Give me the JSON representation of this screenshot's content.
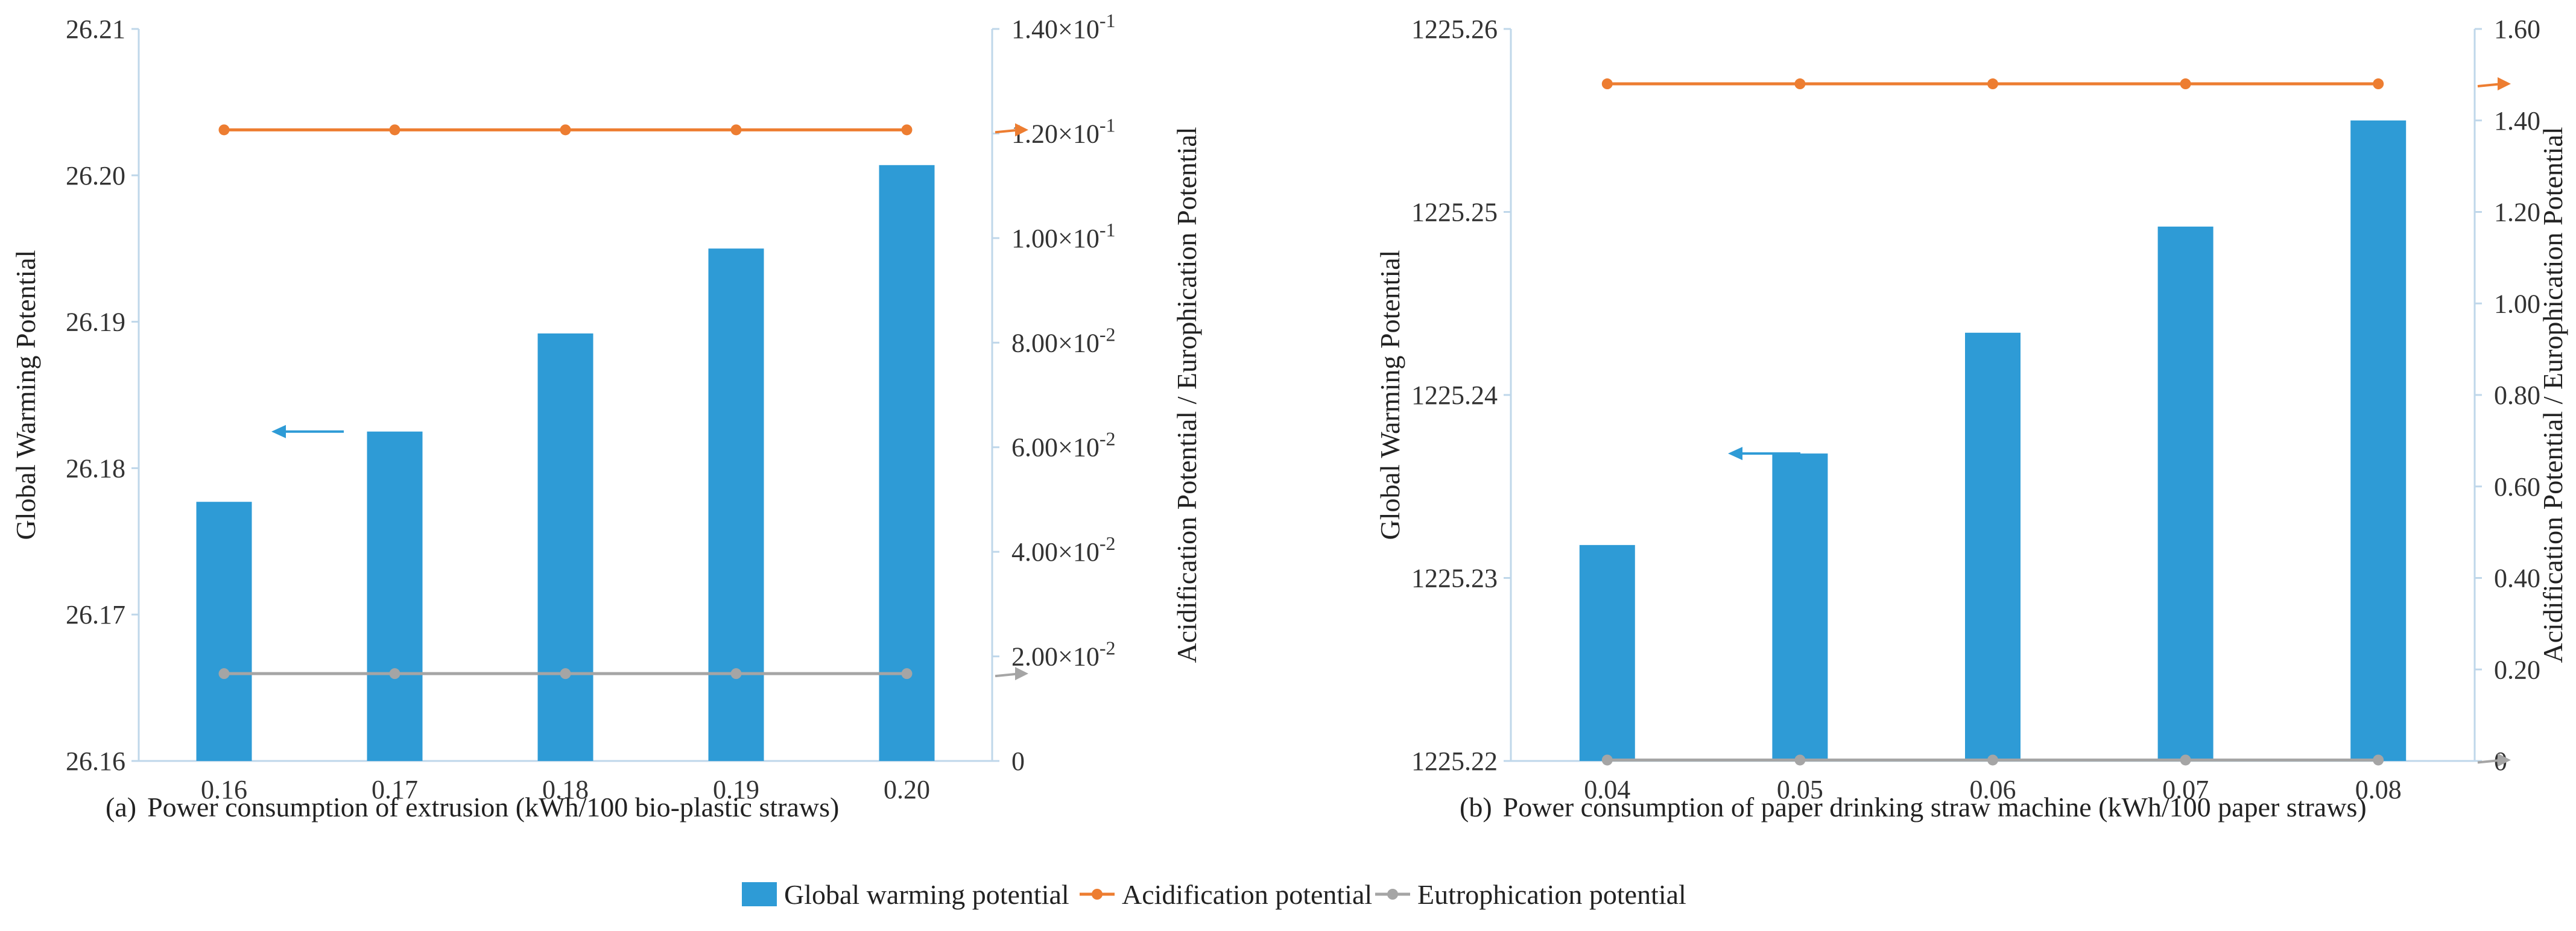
{
  "colors": {
    "bar": "#2E9BD6",
    "acidification": "#ED7D31",
    "eutrophication": "#A5A5A5",
    "axis": "#BFD7EA",
    "grid_left_arrow": "#2E9BD6"
  },
  "legend": {
    "items": [
      {
        "key": "gwp",
        "label": "Global warming potential",
        "shape": "bar"
      },
      {
        "key": "acid",
        "label": "Acidification potential",
        "shape": "line"
      },
      {
        "key": "eutro",
        "label": "Eutrophication potential",
        "shape": "line"
      }
    ]
  },
  "chart_data": [
    {
      "type": "bar",
      "panel_label": "(a)",
      "xlabel": "Power consumption of extrusion (kWh/100 bio-plastic straws)",
      "ylabel_left": "Global Warming Potential",
      "ylabel_right": "Acidification Potential / Europhication Potential",
      "categories": [
        "0.16",
        "0.17",
        "0.18",
        "0.19",
        "0.20"
      ],
      "ylim_left": [
        26.16,
        26.21
      ],
      "yticks_left": [
        "26.16",
        "26.17",
        "26.18",
        "26.19",
        "26.20",
        "26.21"
      ],
      "ylim_right": [
        0,
        0.14
      ],
      "yticks_right": [
        {
          "base": "0",
          "exp": ""
        },
        {
          "base": "2.00×10",
          "exp": "-2"
        },
        {
          "base": "4.00×10",
          "exp": "-2"
        },
        {
          "base": "6.00×10",
          "exp": "-2"
        },
        {
          "base": "8.00×10",
          "exp": "-2"
        },
        {
          "base": "1.00×10",
          "exp": "-1"
        },
        {
          "base": "1.20×10",
          "exp": "-1"
        },
        {
          "base": "1.40×10",
          "exp": "-1"
        }
      ],
      "series": [
        {
          "name": "Global warming potential",
          "axis": "left",
          "kind": "bar",
          "values": [
            26.1777,
            26.1825,
            26.1892,
            26.195,
            26.2007
          ]
        },
        {
          "name": "Acidification potential",
          "axis": "right",
          "kind": "line",
          "values": [
            0.1207,
            0.1207,
            0.1207,
            0.1207,
            0.1207
          ]
        },
        {
          "name": "Eutrophication potential",
          "axis": "right",
          "kind": "line",
          "values": [
            0.0167,
            0.0167,
            0.0167,
            0.0167,
            0.0167
          ]
        }
      ]
    },
    {
      "type": "bar",
      "panel_label": "(b)",
      "xlabel": "Power consumption of paper drinking straw machine (kWh/100 paper straws)",
      "ylabel_left": "Global Warming Potential",
      "ylabel_right": "Acidification Potential / Europhication Potential",
      "categories": [
        "0.04",
        "0.05",
        "0.06",
        "0.07",
        "0.08"
      ],
      "ylim_left": [
        1225.22,
        1225.26
      ],
      "yticks_left": [
        "1225.22",
        "1225.23",
        "1225.24",
        "1225.25",
        "1225.26"
      ],
      "ylim_right": [
        0,
        1.6
      ],
      "yticks_right": [
        {
          "base": "0",
          "exp": ""
        },
        {
          "base": "0.20",
          "exp": ""
        },
        {
          "base": "0.40",
          "exp": ""
        },
        {
          "base": "0.60",
          "exp": ""
        },
        {
          "base": "0.80",
          "exp": ""
        },
        {
          "base": "1.00",
          "exp": ""
        },
        {
          "base": "1.20",
          "exp": ""
        },
        {
          "base": "1.40",
          "exp": ""
        },
        {
          "base": "1.60",
          "exp": ""
        }
      ],
      "series": [
        {
          "name": "Global warming potential",
          "axis": "left",
          "kind": "bar",
          "values": [
            1225.2318,
            1225.2368,
            1225.2434,
            1225.2492,
            1225.255
          ]
        },
        {
          "name": "Acidification potential",
          "axis": "right",
          "kind": "line",
          "values": [
            1.48,
            1.48,
            1.48,
            1.48,
            1.48
          ]
        },
        {
          "name": "Eutrophication potential",
          "axis": "right",
          "kind": "line",
          "values": [
            0.002,
            0.002,
            0.002,
            0.002,
            0.002
          ]
        }
      ]
    }
  ]
}
